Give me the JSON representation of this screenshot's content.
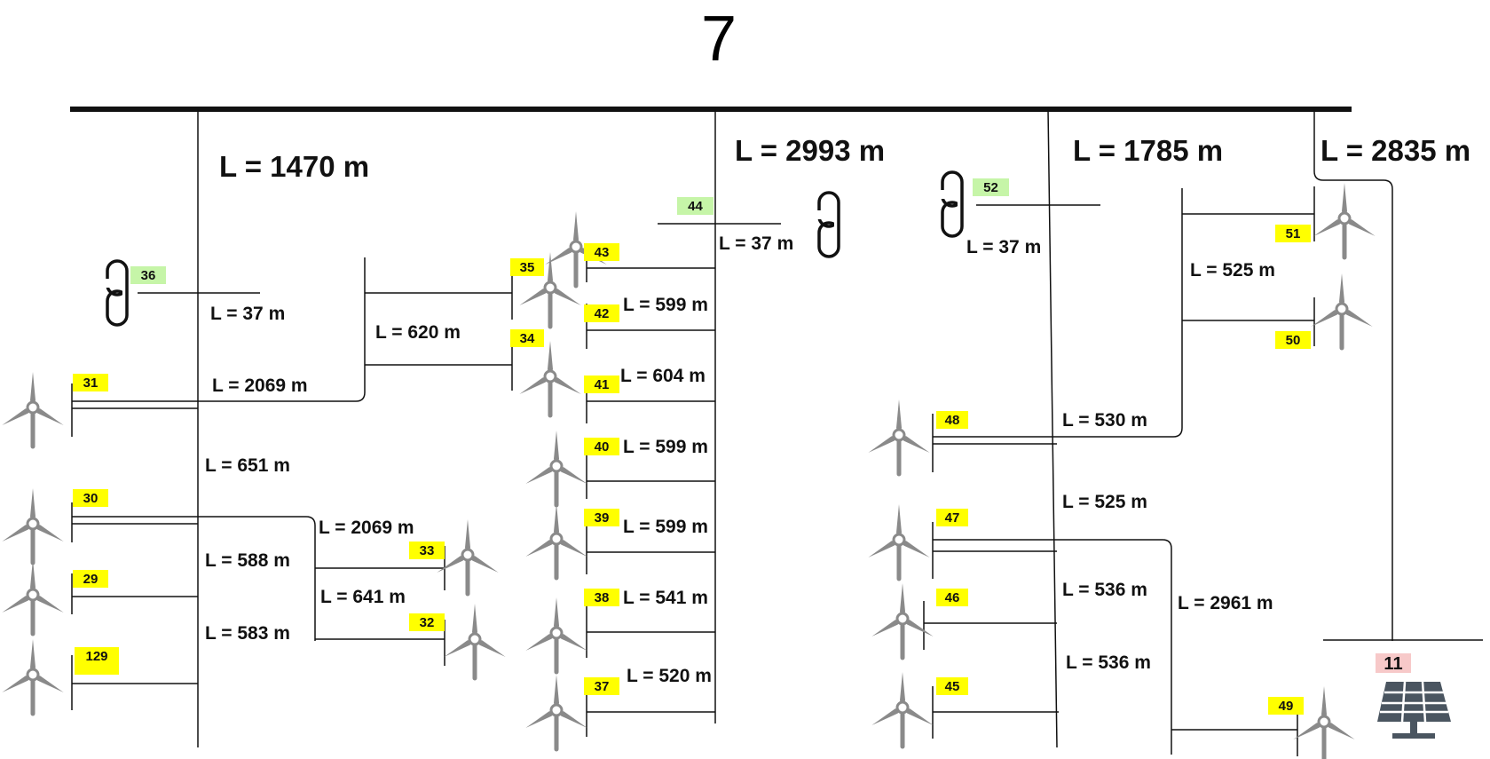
{
  "bus_label": "7",
  "colors": {
    "wt_tag": "#ffff00",
    "link_tag": "#c6f5a8",
    "pv_tag": "#f7c9c9",
    "turbine": "#8a8a8a",
    "line": "#111111"
  },
  "icons": {
    "turbine": "wind-turbine-icon",
    "link": "chain-link-icon",
    "pv": "solar-panel-icon"
  },
  "feeder_lengths": [
    "L = 1470 m",
    "L = 2993 m",
    "L = 1785 m",
    "L = 2835 m"
  ],
  "segment_lengths": [
    "L = 37 m",
    "L = 620 m",
    "L = 2069 m",
    "L = 651 m",
    "L = 2069 m",
    "L = 588 m",
    "L = 641 m",
    "L = 583 m",
    "L = 37 m",
    "L = 599 m",
    "L = 604 m",
    "L = 599 m",
    "L = 599 m",
    "L = 541 m",
    "L = 520 m",
    "L = 37 m",
    "L = 525 m",
    "L = 530 m",
    "L = 525 m",
    "L = 536 m",
    "L = 536 m",
    "L = 2961 m"
  ],
  "turbine_ids": [
    "31",
    "30",
    "29",
    "129",
    "33",
    "32",
    "35",
    "34",
    "43",
    "42",
    "41",
    "40",
    "39",
    "38",
    "37",
    "48",
    "47",
    "46",
    "45",
    "51",
    "50",
    "49"
  ],
  "link_ids": [
    "36",
    "44",
    "52"
  ],
  "pv_id": "11"
}
